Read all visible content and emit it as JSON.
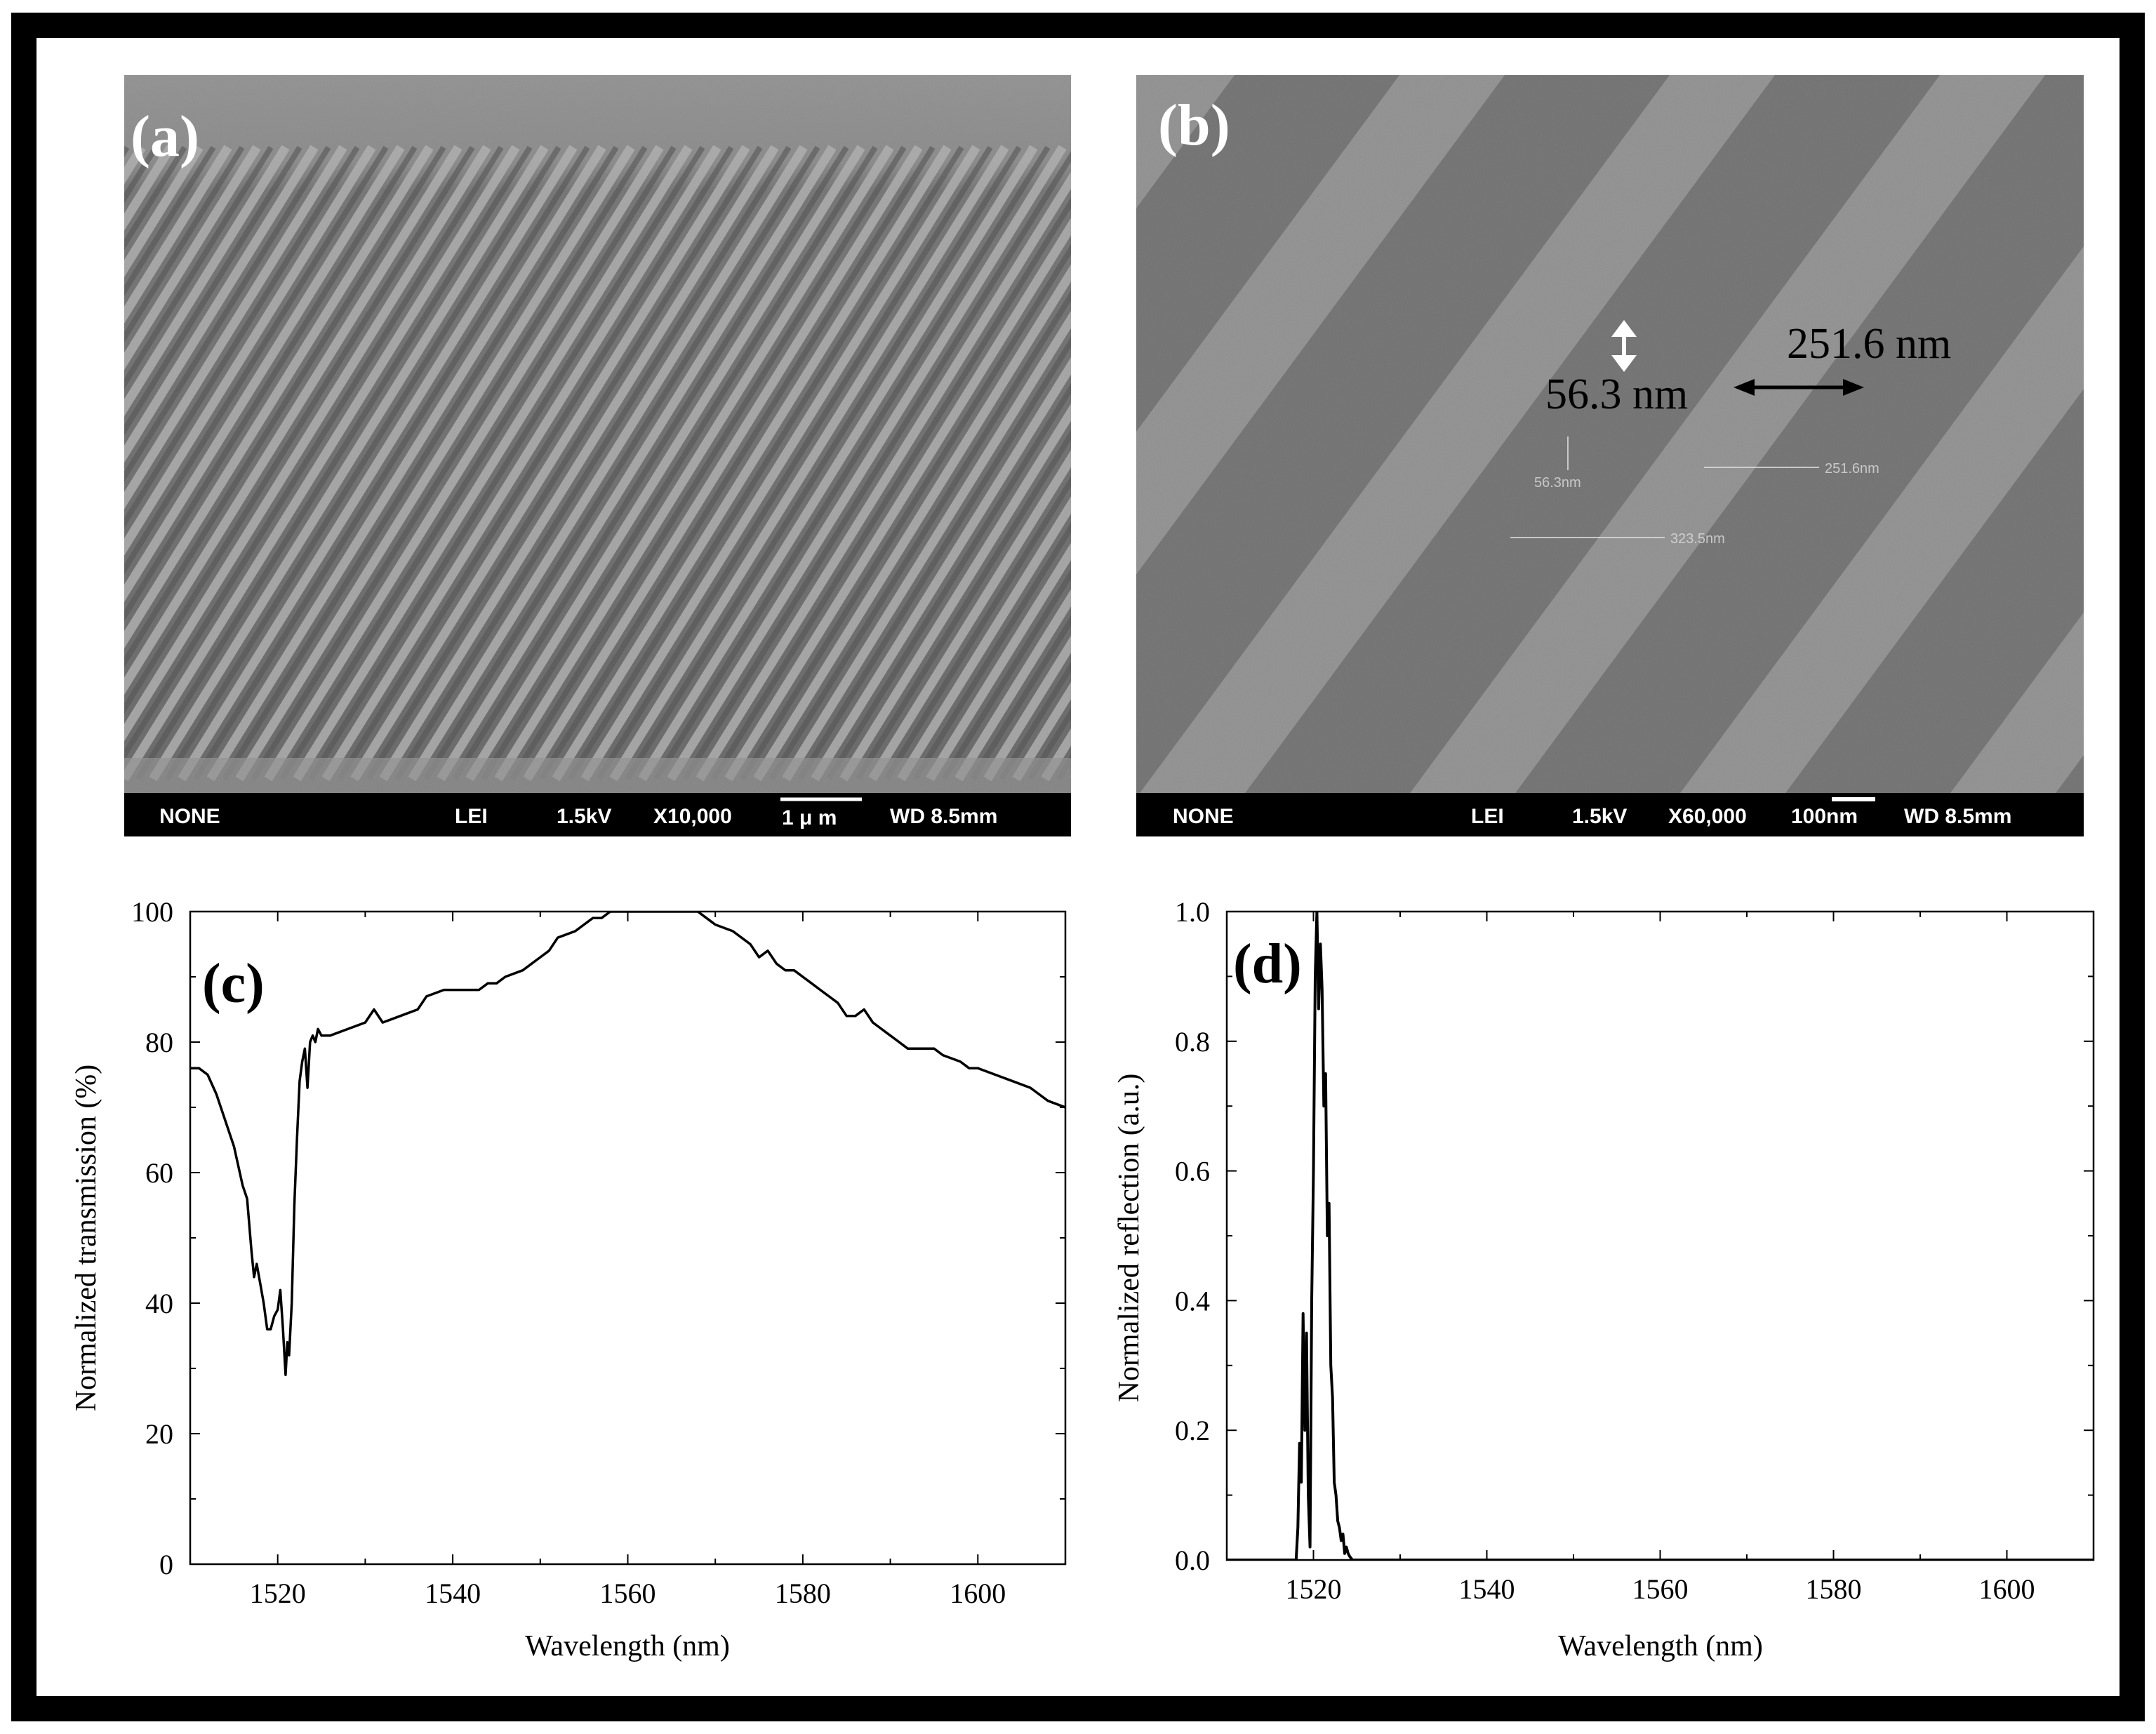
{
  "panel_a": {
    "label": "(a)",
    "info_bar": {
      "detector": "NONE",
      "mode": "LEI",
      "voltage": "1.5kV",
      "magnification": "X10,000",
      "scale_text": "1 μ m",
      "working_distance": "WD 8.5mm"
    }
  },
  "panel_b": {
    "label": "(b)",
    "dim_height": "56.3 nm",
    "dim_period": "251.6 nm",
    "faint_height": "56.3nm",
    "faint_period": "251.6nm",
    "faint_width": "323.5nm",
    "info_bar": {
      "detector": "NONE",
      "mode": "LEI",
      "voltage": "1.5kV",
      "magnification": "X60,000",
      "scale_text": "100nm",
      "working_distance": "WD 8.5mm"
    }
  },
  "colors": {
    "frame": "#000000",
    "sem_bar": "#000000",
    "sem_text": "#ffffff",
    "curve": "#000000"
  },
  "chart_data": [
    {
      "id": "c",
      "type": "line",
      "panel_label": "(c)",
      "xlabel": "Wavelength (nm)",
      "ylabel": "Normalized transmission (%)",
      "xlim": [
        1510,
        1610
      ],
      "ylim": [
        0,
        100
      ],
      "xticks": [
        1520,
        1540,
        1560,
        1580,
        1600
      ],
      "yticks": [
        0,
        20,
        40,
        60,
        80,
        100
      ],
      "x": [
        1510,
        1511,
        1512,
        1513,
        1514,
        1515,
        1516,
        1516.5,
        1517,
        1517.3,
        1517.6,
        1518,
        1518.4,
        1518.8,
        1519.2,
        1519.6,
        1520,
        1520.3,
        1520.6,
        1520.9,
        1521.1,
        1521.3,
        1521.6,
        1521.9,
        1522.2,
        1522.5,
        1522.8,
        1523.1,
        1523.4,
        1523.7,
        1524,
        1524.3,
        1524.6,
        1525,
        1526,
        1528,
        1530,
        1531,
        1532,
        1534,
        1536,
        1537,
        1539,
        1542,
        1543,
        1544,
        1545,
        1546,
        1548,
        1550,
        1551,
        1552,
        1554,
        1555,
        1556,
        1557,
        1558,
        1559,
        1560,
        1562,
        1564,
        1566,
        1568,
        1569,
        1570,
        1572,
        1573,
        1574,
        1575,
        1576,
        1577,
        1578,
        1579,
        1580,
        1581,
        1582,
        1583,
        1584,
        1585,
        1586,
        1587,
        1588,
        1589,
        1590,
        1591,
        1592,
        1594,
        1595,
        1596,
        1598,
        1599,
        1600,
        1602,
        1604,
        1606,
        1607,
        1608,
        1610
      ],
      "y": [
        76,
        76,
        75,
        72,
        68,
        64,
        58,
        56,
        48,
        44,
        46,
        43,
        40,
        36,
        36,
        38,
        39,
        42,
        36,
        29,
        34,
        32,
        40,
        55,
        65,
        74,
        77,
        79,
        73,
        80,
        81,
        80,
        82,
        81,
        81,
        82,
        83,
        85,
        83,
        84,
        85,
        87,
        88,
        88,
        88,
        89,
        89,
        90,
        91,
        93,
        94,
        96,
        97,
        98,
        99,
        99,
        100,
        100,
        100,
        100,
        100,
        100,
        100,
        99,
        98,
        97,
        96,
        95,
        93,
        94,
        92,
        91,
        91,
        90,
        89,
        88,
        87,
        86,
        84,
        84,
        85,
        83,
        82,
        81,
        80,
        79,
        79,
        79,
        78,
        77,
        76,
        76,
        75,
        74,
        73,
        72,
        71,
        70
      ]
    },
    {
      "id": "d",
      "type": "line",
      "panel_label": "(d)",
      "xlabel": "Wavelength (nm)",
      "ylabel": "Normalized reflection (a.u.)",
      "xlim": [
        1510,
        1610
      ],
      "ylim": [
        0,
        1.0
      ],
      "xticks": [
        1520,
        1540,
        1560,
        1580,
        1600
      ],
      "yticks": [
        0.0,
        0.2,
        0.4,
        0.6,
        0.8,
        1.0
      ],
      "x": [
        1510,
        1518,
        1518.2,
        1518.4,
        1518.6,
        1518.8,
        1519,
        1519.2,
        1519.4,
        1519.6,
        1519.8,
        1520,
        1520.2,
        1520.4,
        1520.6,
        1520.8,
        1521,
        1521.2,
        1521.4,
        1521.6,
        1521.8,
        1522,
        1522.2,
        1522.4,
        1522.6,
        1522.8,
        1523,
        1523.2,
        1523.4,
        1523.6,
        1523.8,
        1524,
        1524.2,
        1524.5,
        1610
      ],
      "y": [
        0,
        0,
        0.05,
        0.18,
        0.12,
        0.38,
        0.2,
        0.35,
        0.1,
        0.02,
        0.4,
        0.6,
        0.9,
        1.0,
        0.85,
        0.95,
        0.88,
        0.7,
        0.75,
        0.5,
        0.55,
        0.3,
        0.25,
        0.12,
        0.1,
        0.06,
        0.05,
        0.03,
        0.04,
        0.01,
        0.02,
        0.01,
        0.005,
        0,
        0
      ]
    }
  ]
}
